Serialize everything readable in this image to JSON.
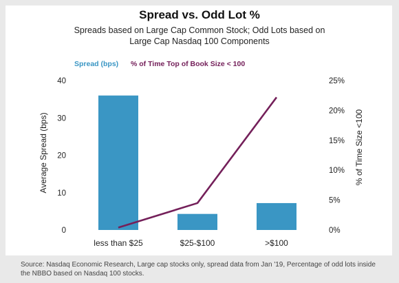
{
  "title": "Spread vs. Odd Lot %",
  "subtitle_lines": [
    "Spreads based on Large Cap Common Stock; Odd Lots based on",
    "Large Cap Nasdaq 100 Components"
  ],
  "source": "Source: Nasdaq Economic Research, Large cap stocks only, spread data from Jan '19, Percentage of odd lots inside the NBBO based on Nasdaq 100 stocks.",
  "colors": {
    "bar": "#3a96c4",
    "line": "#74205a",
    "background": "#e9e9e9",
    "panel": "#ffffff"
  },
  "chart_data": {
    "type": "bar+line",
    "title": "Spread vs. Odd Lot %",
    "categories": [
      "less than $25",
      "$25-$100",
      ">$100"
    ],
    "series": [
      {
        "name": "Spread (bps)",
        "type": "bar",
        "axis": "left",
        "values": [
          36,
          4.3,
          7.2
        ]
      },
      {
        "name": "% of Time Top of Book Size < 100",
        "type": "line",
        "axis": "right",
        "values": [
          0.4,
          4.5,
          22.2
        ]
      }
    ],
    "ylabel": "Average Spread (bps)",
    "ylabel_right": "% of Time Size <100",
    "ylim": [
      0,
      40
    ],
    "ylim_right": [
      0,
      25
    ],
    "yticks": [
      "0",
      "10",
      "20",
      "30",
      "40"
    ],
    "yticks_right": [
      "0%",
      "5%",
      "10%",
      "15%",
      "20%",
      "25%"
    ],
    "legend_position": "top-left",
    "grid": false
  }
}
